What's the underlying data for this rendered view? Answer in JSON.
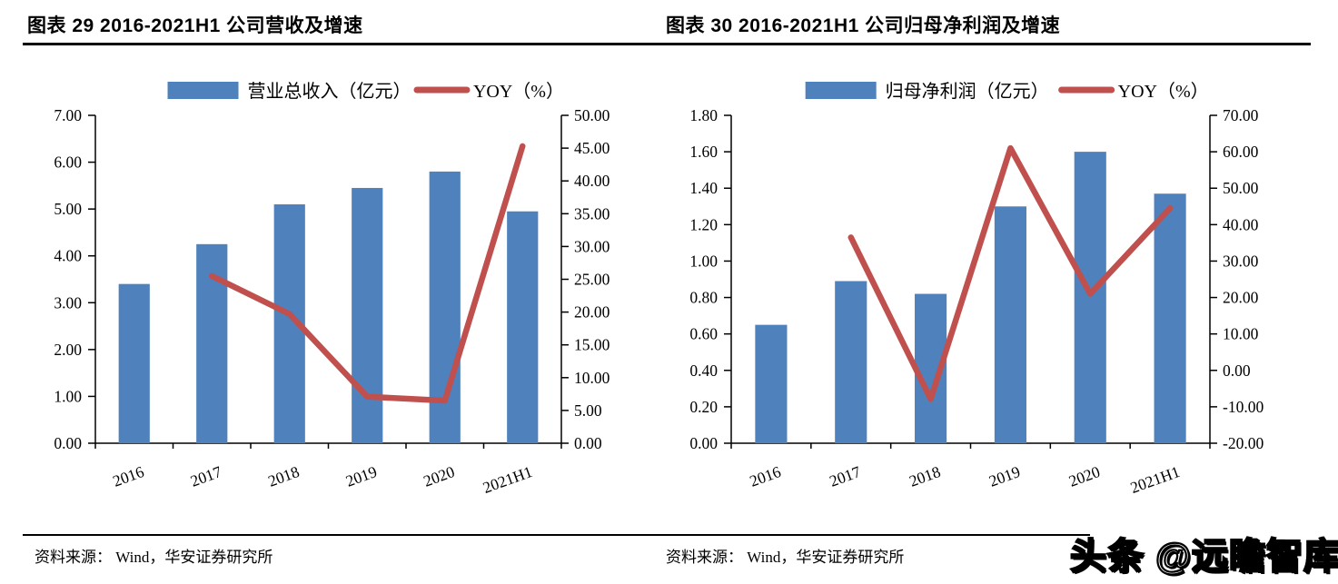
{
  "page": {
    "watermark": "头条 @远瞻智库",
    "colors": {
      "bar": "#4F81BD",
      "line": "#C0504D",
      "axis": "#000000"
    }
  },
  "columns": [
    {
      "title": "图表 29 2016-2021H1 公司营收及增速",
      "source_label": "资料来源： Wind，华安证券研究所"
    },
    {
      "title": "图表 30 2016-2021H1 公司归母净利润及增速",
      "source_label": "资料来源： Wind，华安证券研究所"
    }
  ],
  "chart_data": [
    {
      "type": "bar",
      "title": "图表 29 2016-2021H1 公司营收及增速",
      "categories": [
        "2016",
        "2017",
        "2018",
        "2019",
        "2020",
        "2021H1"
      ],
      "series": [
        {
          "name": "营业总收入（亿元）",
          "type": "bar",
          "axis": "left",
          "color": "#4F81BD",
          "values": [
            3.4,
            4.25,
            5.1,
            5.45,
            5.8,
            4.95
          ]
        },
        {
          "name": "YOY（%）",
          "type": "line",
          "axis": "right",
          "color": "#C0504D",
          "values": [
            null,
            25.5,
            19.7,
            7.1,
            6.5,
            45.3
          ]
        }
      ],
      "left_axis": {
        "min": 0,
        "max": 7,
        "step": 1,
        "format": "0.00"
      },
      "right_axis": {
        "min": 0,
        "max": 50,
        "step": 5,
        "format": "0.00"
      },
      "legend_position": "top",
      "grid": false
    },
    {
      "type": "bar",
      "title": "图表 30 2016-2021H1 公司归母净利润及增速",
      "categories": [
        "2016",
        "2017",
        "2018",
        "2019",
        "2020",
        "2021H1"
      ],
      "series": [
        {
          "name": "归母净利润（亿元）",
          "type": "bar",
          "axis": "left",
          "color": "#4F81BD",
          "values": [
            0.65,
            0.89,
            0.82,
            1.3,
            1.6,
            1.37
          ]
        },
        {
          "name": "YOY（%）",
          "type": "line",
          "axis": "right",
          "color": "#C0504D",
          "values": [
            null,
            36.5,
            -7.9,
            61.0,
            21.0,
            44.5
          ]
        }
      ],
      "left_axis": {
        "min": 0,
        "max": 1.8,
        "step": 0.2,
        "format": "0.00"
      },
      "right_axis": {
        "min": -20,
        "max": 70,
        "step": 10,
        "format": "0.00"
      },
      "legend_position": "top",
      "grid": false
    }
  ]
}
